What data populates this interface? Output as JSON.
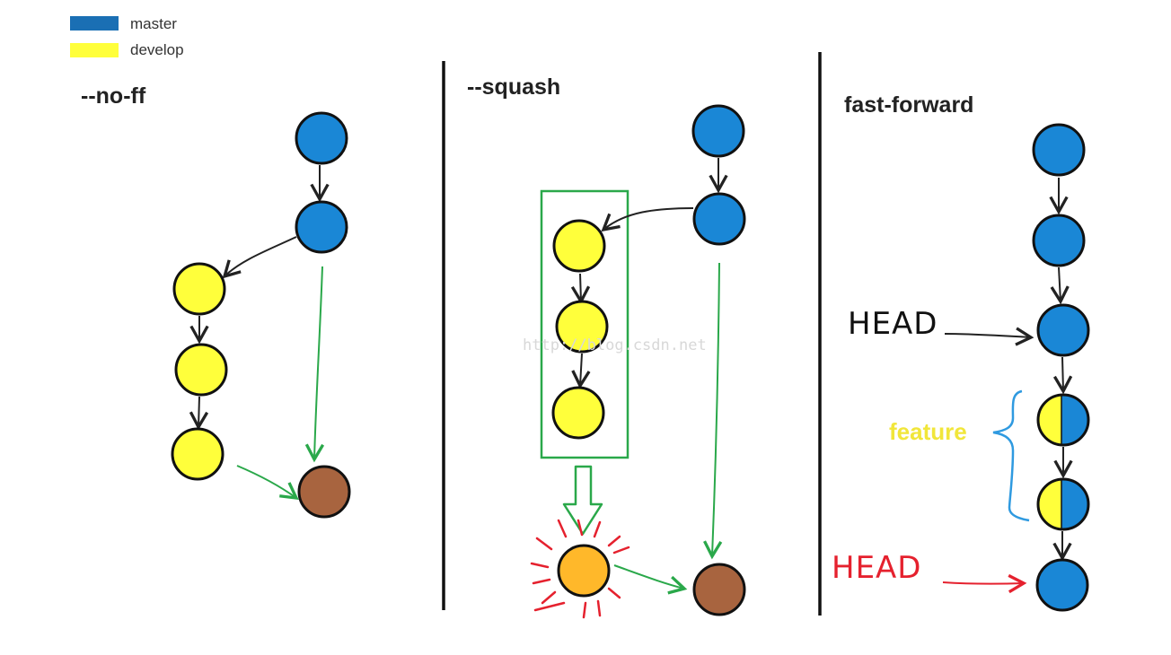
{
  "colors": {
    "master": "#1a87d6",
    "develop": "#ffff3b",
    "merge": "#a8643f",
    "squash": "#ffb82a",
    "green": "#2aa84a",
    "red": "#e5212e",
    "bracket": "#2f9ae0",
    "feature_text": "#f1e63a"
  },
  "legend": [
    {
      "label": "master",
      "color": "#1a6fb4"
    },
    {
      "label": "develop",
      "color": "#ffff3b"
    }
  ],
  "sections": {
    "no_ff": {
      "title": "--no-ff"
    },
    "squash": {
      "title": "--squash"
    },
    "fast_forward": {
      "title": "fast-forward",
      "head_label": "HEAD",
      "feature_label": "feature",
      "new_head_label": "HEAD"
    }
  },
  "watermark": "http://blog.csdn.net"
}
